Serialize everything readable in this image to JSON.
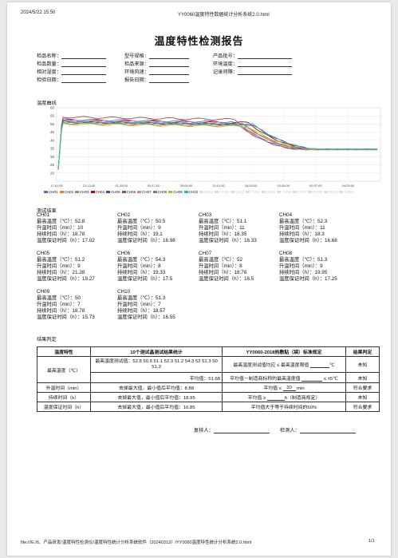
{
  "header": {
    "datetime": "2024/5/22 15:50",
    "doc_title": "YY0060温度特性数据统计分析系统2.0.html"
  },
  "report_title": "温度特性检测报告",
  "info_fields": [
    [
      "检品名称：",
      "型号规格：",
      "产品批号："
    ],
    [
      "检品数量：",
      "检品来源：",
      "环境温度："
    ],
    [
      "相对湿度：",
      "环境风速：",
      "记录间隔："
    ],
    [
      "检验日期：",
      "报告日期：",
      ""
    ]
  ],
  "curve_section": "温度曲线",
  "chart_data": {
    "type": "line",
    "title": "",
    "ylim": [
      15,
      60
    ],
    "yticks": [
      "60",
      "55",
      "50",
      "45",
      "40",
      "35",
      "30",
      "25",
      "20"
    ],
    "xticks": [
      "17:51:00",
      "21:13:00",
      "01:25:00",
      "05:17:00",
      "09:09:00",
      "13:01:00",
      "16:53:00",
      "20:45:00",
      "00:37:00",
      "04:29:00"
    ],
    "grid": true,
    "legend_position": "bottom",
    "series": [
      {
        "name": "CH01",
        "color": "#4472c4",
        "plateau": 52.8
      },
      {
        "name": "CH02",
        "color": "#ed7d31",
        "plateau": 50.5
      },
      {
        "name": "CH03",
        "color": "#70ad47",
        "plateau": 51.1
      },
      {
        "name": "CH04",
        "color": "#c00000",
        "plateau": 52.3
      },
      {
        "name": "CH05",
        "color": "#7030a0",
        "plateau": 51.2
      },
      {
        "name": "CH06",
        "color": "#8c564b",
        "plateau": 54.3
      },
      {
        "name": "CH07",
        "color": "#e377c2",
        "plateau": 52.0
      },
      {
        "name": "CH08",
        "color": "#7f7f7f",
        "plateau": 51.3
      },
      {
        "name": "CH09",
        "color": "#bcbd22",
        "plateau": 50.0
      },
      {
        "name": "CH10",
        "color": "#17becf",
        "plateau": 51.3
      }
    ],
    "inactive_series": [
      "CH11",
      "CH12",
      "CH13",
      "CH14",
      "CH15",
      "CH16",
      "CH17",
      "CH18",
      "CH19",
      "CH20"
    ]
  },
  "results_section": "测试结果",
  "channels": [
    {
      "name": "CH01",
      "max": "52.8",
      "rise": "10",
      "hold": "18.78",
      "keep": "17.02"
    },
    {
      "name": "CH02",
      "max": "50.5",
      "rise": "9",
      "hold": "19.1",
      "keep": "16.98"
    },
    {
      "name": "CH03",
      "max": "51.1",
      "rise": "11",
      "hold": "18.35",
      "keep": "16.33"
    },
    {
      "name": "CH04",
      "max": "52.3",
      "rise": "11",
      "hold": "18.3",
      "keep": "16.68"
    },
    {
      "name": "CH05",
      "max": "51.2",
      "rise": "9",
      "hold": "21.28",
      "keep": "19.27"
    },
    {
      "name": "CH06",
      "max": "54.3",
      "rise": "8",
      "hold": "19.33",
      "keep": "17.5"
    },
    {
      "name": "CH07",
      "max": "52",
      "rise": "8",
      "hold": "18.78",
      "keep": "16.5"
    },
    {
      "name": "CH08",
      "max": "51.3",
      "rise": "9",
      "hold": "19.95",
      "keep": "17.25"
    },
    {
      "name": "CH09",
      "max": "50",
      "rise": "7",
      "hold": "18.78",
      "keep": "15.73"
    },
    {
      "name": "CH10",
      "max": "51.3",
      "rise": "7",
      "hold": "18.57",
      "keep": "16.55"
    }
  ],
  "labels": {
    "max": "最高温度（℃）：",
    "rise": "升温时间（min）：",
    "hold": "持续时间（h）：",
    "keep": "温度保证时间（h）："
  },
  "judge_section": "结果判定",
  "table": {
    "headers": [
      "温度特性",
      "10个测试晶测试结果统计",
      "YY0060-2018热敷贴（袋）标准规定",
      "结果判定"
    ],
    "rows": {
      "max_label": "最高温度（℃）",
      "max_values": "最高温度测试值：52.8 50.5 51.1 52.3 51.2 54.3 52 51.3 50 51.3",
      "max_std": "最高温度测试值均应 ≤ 最高温度限值",
      "max_std_unit": "℃",
      "max_result": "未知",
      "avg": "平均值：51.68",
      "avg_std": "平均值－制造商标称的最高温度值",
      "avg_std_tail": "≤ ±5℃",
      "avg_result": "未知",
      "rise_label": "升温时间（min）",
      "rise_stat": "去掉最大值，最小值后平均值：8.88",
      "rise_std_pre": "平均值 ≤",
      "rise_std_val": "20",
      "rise_std_unit": "min",
      "rise_result": "符合要求",
      "hold_label": "持续时间（h）",
      "hold_stat": "去掉最大值，最小值后平均值：18.95",
      "hold_std_pre": "平均值 ≥",
      "hold_std_unit": "h（制造商规定）",
      "hold_result": "未知",
      "keep_label": "温度保证时间（h）",
      "keep_stat": "去掉最大值，最小值后平均值：16.85",
      "keep_std": "平均值大于等于持续时间的50%",
      "keep_result": "符合要求"
    }
  },
  "signatures": {
    "reviewer": "复核人：",
    "inspector": "检测人："
  },
  "footer": {
    "path": "file:///E:/6、产品研发/温度特性检测仪/温度特性统计分析系统软件（20240313）/YY0060温度特性统计分析系统2.0.html",
    "page": "1/1"
  }
}
